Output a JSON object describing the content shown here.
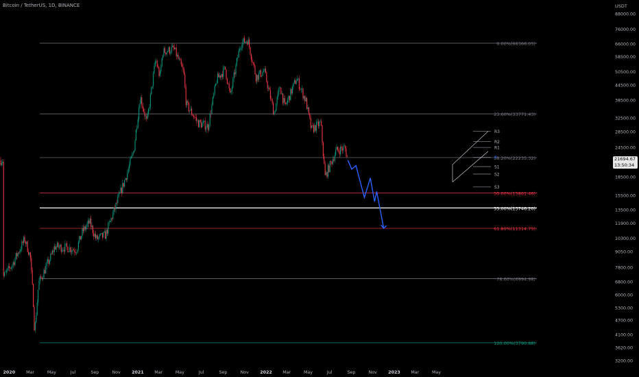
{
  "header": {
    "symbol_line": "Bitcoin / TetherUS, 1D, BINANCE"
  },
  "price_axis": {
    "currency": "USDT",
    "labels": [
      "88000.00",
      "76000.00",
      "66000.00",
      "58500.00",
      "50500.00",
      "44500.00",
      "38500.00",
      "32500.00",
      "28500.00",
      "24500.00",
      "18500.00",
      "15500.00",
      "13500.00",
      "11900.00",
      "10300.00",
      "9050.00",
      "7800.00",
      "6800.00",
      "6000.00",
      "5300.00",
      "4700.00",
      "4100.00",
      "3620.00",
      "3200.00"
    ]
  },
  "time_axis": {
    "labels": [
      "2020",
      "Mar",
      "May",
      "Jul",
      "Sep",
      "Nov",
      "2021",
      "Mar",
      "May",
      "Jul",
      "Sep",
      "Nov",
      "2022",
      "Mar",
      "May",
      "Jul",
      "Sep",
      "Nov",
      "2023",
      "Mar",
      "May"
    ]
  },
  "current_price": {
    "price": "21694.67",
    "countdown": "13:50:34"
  },
  "chart_data": {
    "type": "candlestick",
    "title": "Bitcoin / TetherUS, 1D, BINANCE",
    "y_scale": "log",
    "ylim": [
      3200,
      100000
    ],
    "x_range": [
      "2019-12-01",
      "2023-05-15"
    ],
    "price_close_path": [
      [
        "2019-12-15",
        7100
      ],
      [
        "2020-01-10",
        8000
      ],
      [
        "2020-02-14",
        10200
      ],
      [
        "2020-03-01",
        8700
      ],
      [
        "2020-03-12",
        5000
      ],
      [
        "2020-03-13",
        4100
      ],
      [
        "2020-03-25",
        6700
      ],
      [
        "2020-04-30",
        8700
      ],
      [
        "2020-05-10",
        9500
      ],
      [
        "2020-06-15",
        9400
      ],
      [
        "2020-07-10",
        9200
      ],
      [
        "2020-07-28",
        11000
      ],
      [
        "2020-08-17",
        12000
      ],
      [
        "2020-09-05",
        10200
      ],
      [
        "2020-10-01",
        10600
      ],
      [
        "2020-10-21",
        12800
      ],
      [
        "2020-11-10",
        15500
      ],
      [
        "2020-12-01",
        19000
      ],
      [
        "2020-12-20",
        23500
      ],
      [
        "2021-01-08",
        40000
      ],
      [
        "2021-01-27",
        31000
      ],
      [
        "2021-02-21",
        57000
      ],
      [
        "2021-03-05",
        48000
      ],
      [
        "2021-03-13",
        61000
      ],
      [
        "2021-04-14",
        63000
      ],
      [
        "2021-05-12",
        50000
      ],
      [
        "2021-05-19",
        37000
      ],
      [
        "2021-06-22",
        31000
      ],
      [
        "2021-07-20",
        30000
      ],
      [
        "2021-08-14",
        47000
      ],
      [
        "2021-09-07",
        52000
      ],
      [
        "2021-09-21",
        40000
      ],
      [
        "2021-10-20",
        66000
      ],
      [
        "2021-11-10",
        68700
      ],
      [
        "2021-12-04",
        48000
      ],
      [
        "2021-12-27",
        51000
      ],
      [
        "2022-01-24",
        34000
      ],
      [
        "2022-02-10",
        44000
      ],
      [
        "2022-02-24",
        36000
      ],
      [
        "2022-03-29",
        47500
      ],
      [
        "2022-04-25",
        38000
      ],
      [
        "2022-05-10",
        29000
      ],
      [
        "2022-06-06",
        31000
      ],
      [
        "2022-06-18",
        18500
      ],
      [
        "2022-07-20",
        23800
      ],
      [
        "2022-08-14",
        24400
      ],
      [
        "2022-08-22",
        21694.67
      ]
    ],
    "fibonacci_levels": [
      {
        "label": "0.00%(66366.05)",
        "ratio": 0.0,
        "price": 66366.05,
        "color": "#787b86"
      },
      {
        "label": "23.60%(33771.43)",
        "ratio": 0.236,
        "price": 33771.43,
        "color": "#787b86"
      },
      {
        "label": "38.20%(22235.32)",
        "ratio": 0.382,
        "price": 22235.32,
        "color": "#787b86"
      },
      {
        "label": "50.00%(15861.46)",
        "ratio": 0.5,
        "price": 15861.46,
        "color": "#f23645"
      },
      {
        "label": "55.00%(13746.20)",
        "ratio": 0.55,
        "price": 13746.2,
        "color": "#ffffff"
      },
      {
        "label": "61.80%(11314.75)",
        "ratio": 0.618,
        "price": 11314.75,
        "color": "#f23645"
      },
      {
        "label": "78.60%(6994.98)",
        "ratio": 0.786,
        "price": 6994.98,
        "color": "#787b86"
      },
      {
        "label": "100.00%(3790.88)",
        "ratio": 1.0,
        "price": 3790.88,
        "color": "#089981"
      }
    ],
    "pivot_labels": [
      "R3",
      "R2",
      "R1",
      "P",
      "S1",
      "S2",
      "S3"
    ],
    "projection_path": [
      [
        "2022-08-22",
        21694.67
      ],
      [
        "2022-09-02",
        19900
      ],
      [
        "2022-09-14",
        20600
      ],
      [
        "2022-10-08",
        15200
      ],
      [
        "2022-10-25",
        18300
      ],
      [
        "2022-11-06",
        14600
      ],
      [
        "2022-11-12",
        16100
      ],
      [
        "2022-12-02",
        11314.75
      ]
    ],
    "colors": {
      "up": "#089981",
      "down": "#f23645",
      "projection": "#2962ff",
      "channel": "#b2b5be"
    }
  }
}
